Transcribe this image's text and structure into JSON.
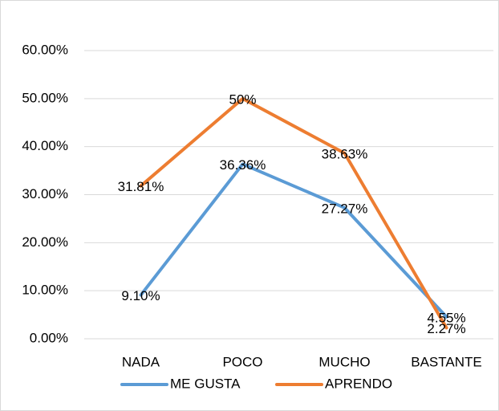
{
  "chart_data": {
    "type": "line",
    "categories": [
      "NADA",
      "POCO",
      "MUCHO",
      "BASTANTE"
    ],
    "series": [
      {
        "name": "ME GUSTA",
        "color": "#5b9bd5",
        "values": [
          9.1,
          36.36,
          27.27,
          4.55
        ],
        "value_labels": [
          "9.10%",
          "36.36%",
          "27.27%",
          "4.55%"
        ]
      },
      {
        "name": "APRENDO",
        "color": "#ed7d31",
        "values": [
          31.81,
          50,
          38.63,
          2.27
        ],
        "value_labels": [
          "31.81%",
          "50%",
          "38.63%",
          "2.27%"
        ]
      }
    ],
    "ylim": [
      0,
      60
    ],
    "yticks": [
      {
        "value": 0,
        "label": "0.00%"
      },
      {
        "value": 10,
        "label": "10.00%"
      },
      {
        "value": 20,
        "label": "20.00%"
      },
      {
        "value": 30,
        "label": "30.00%"
      },
      {
        "value": 40,
        "label": "40.00%"
      },
      {
        "value": 50,
        "label": "50.00%"
      },
      {
        "value": 60,
        "label": "60.00%"
      }
    ],
    "grid": true,
    "legend": "bottom"
  }
}
